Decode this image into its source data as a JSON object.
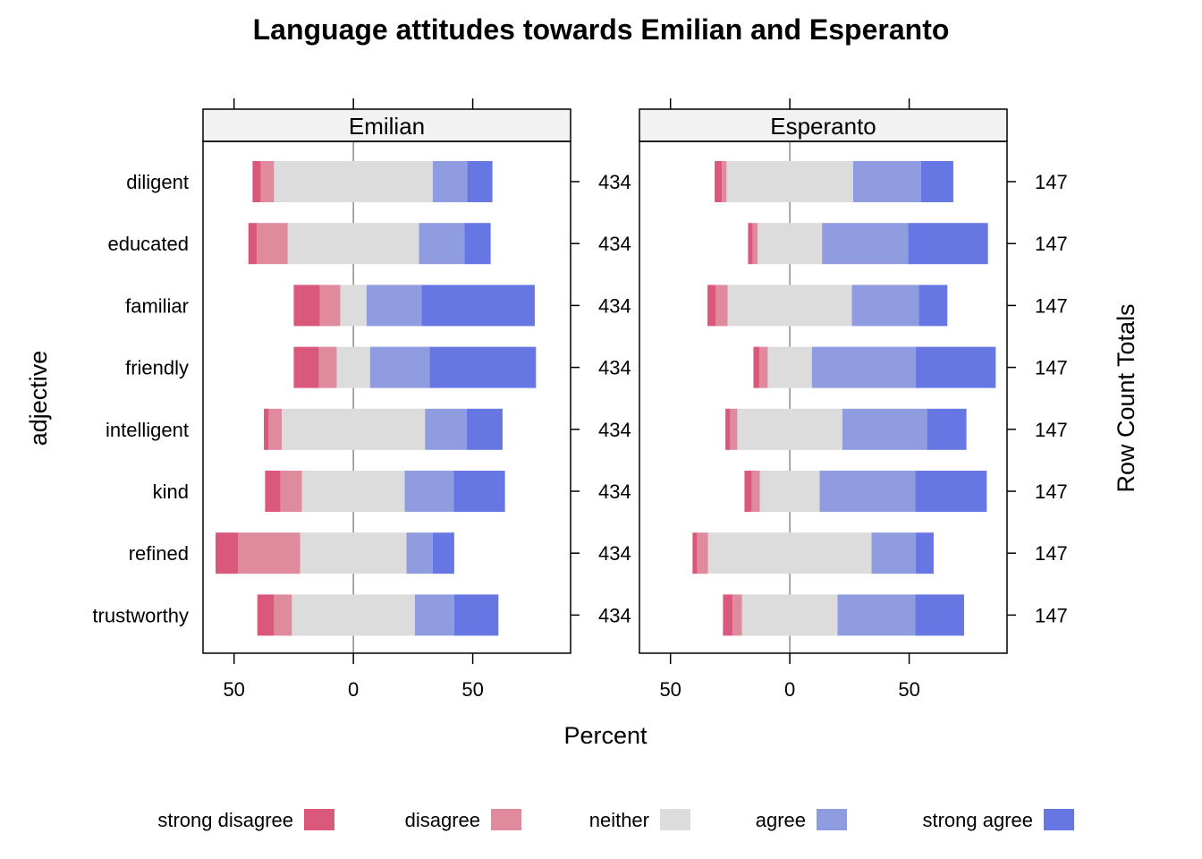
{
  "chart_data": {
    "type": "bar",
    "subtype": "diverging-stacked-horizontal-likert",
    "title": "Language attitudes towards Emilian and Esperanto",
    "xlabel": "Percent",
    "ylabel": "adjective",
    "ylabel_right": "Row Count Totals",
    "x_tick_labels": [
      "50",
      "0",
      "50"
    ],
    "x_ticks": [
      -50,
      0,
      50
    ],
    "categories": [
      "diligent",
      "educated",
      "familiar",
      "friendly",
      "intelligent",
      "kind",
      "refined",
      "trustworthy"
    ],
    "legend": {
      "position": "bottom",
      "items": [
        {
          "label": "strong disagree",
          "color": "#D9587B"
        },
        {
          "label": "disagree",
          "color": "#E08A9E"
        },
        {
          "label": "neither",
          "color": "#DCDCDC"
        },
        {
          "label": "agree",
          "color": "#8F9DE0"
        },
        {
          "label": "strong agree",
          "color": "#6677E3"
        }
      ]
    },
    "panels": [
      {
        "name": "Emilian",
        "xlim": [
          -63,
          91
        ],
        "row_totals": [
          "434",
          "434",
          "434",
          "434",
          "434",
          "434",
          "434",
          "434"
        ],
        "series": [
          {
            "name": "strong disagree",
            "values": [
              3.5,
              3.5,
              11,
              10.5,
              2,
              6.5,
              9.5,
              7
            ]
          },
          {
            "name": "disagree",
            "values": [
              5.5,
              13,
              8.5,
              7.5,
              5.5,
              9,
              26,
              7.5
            ]
          },
          {
            "name": "neither",
            "values": [
              66.5,
              55,
              11,
              14,
              60,
              43,
              44.5,
              51.5
            ]
          },
          {
            "name": "agree",
            "values": [
              14.5,
              19,
              23,
              25,
              17.5,
              20.5,
              11,
              16.5
            ]
          },
          {
            "name": "strong agree",
            "values": [
              10.5,
              11,
              47.5,
              44.5,
              15,
              21.5,
              9,
              18.5
            ]
          }
        ]
      },
      {
        "name": "Esperanto",
        "xlim": [
          -63,
          91
        ],
        "row_totals": [
          "147",
          "147",
          "147",
          "147",
          "147",
          "147",
          "147",
          "147"
        ],
        "series": [
          {
            "name": "strong disagree",
            "values": [
              3,
              2,
              3.5,
              2.5,
              2,
              3,
              2,
              4
            ]
          },
          {
            "name": "disagree",
            "values": [
              2,
              2,
              5,
              3.5,
              3,
              3.5,
              4.5,
              4
            ]
          },
          {
            "name": "neither",
            "values": [
              53,
              27,
              52,
              18.5,
              44,
              25,
              68.5,
              40
            ]
          },
          {
            "name": "agree",
            "values": [
              28.5,
              36,
              28,
              43.5,
              35.5,
              40,
              18.5,
              32.5
            ]
          },
          {
            "name": "strong agree",
            "values": [
              13.5,
              33.5,
              12,
              33.5,
              16.5,
              30,
              7.5,
              20.5
            ]
          }
        ]
      }
    ]
  }
}
